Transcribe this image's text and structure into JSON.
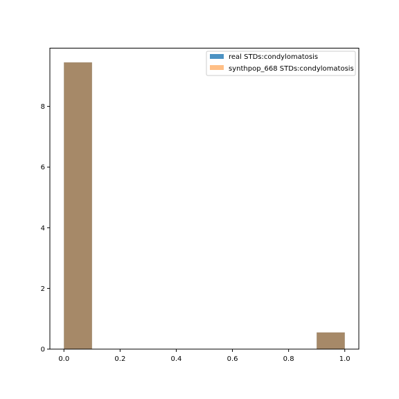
{
  "chart_data": {
    "type": "bar",
    "title": "",
    "xlabel": "",
    "ylabel": "",
    "xlim": [
      -0.05,
      1.05
    ],
    "ylim": [
      0,
      9.92
    ],
    "x_ticks": [
      0.0,
      0.2,
      0.4,
      0.6,
      0.8,
      1.0
    ],
    "x_tick_labels": [
      "0.0",
      "0.2",
      "0.4",
      "0.6",
      "0.8",
      "1.0"
    ],
    "y_ticks": [
      0,
      2,
      4,
      6,
      8
    ],
    "y_tick_labels": [
      "0",
      "2",
      "4",
      "6",
      "8"
    ],
    "grid": false,
    "legend_position": "top-right",
    "bins": [
      {
        "x0": 0.0,
        "x1": 0.1
      },
      {
        "x0": 0.9,
        "x1": 1.0
      }
    ],
    "series": [
      {
        "name": "real STDs:condylomatosis",
        "color": "#1f77b4",
        "opacity": 0.8,
        "values": [
          9.45,
          0.55
        ]
      },
      {
        "name": "synthpop_668 STDs:condylomatosis",
        "color": "#ff7f0e",
        "opacity": 0.5,
        "values": [
          9.45,
          0.55
        ]
      }
    ]
  }
}
